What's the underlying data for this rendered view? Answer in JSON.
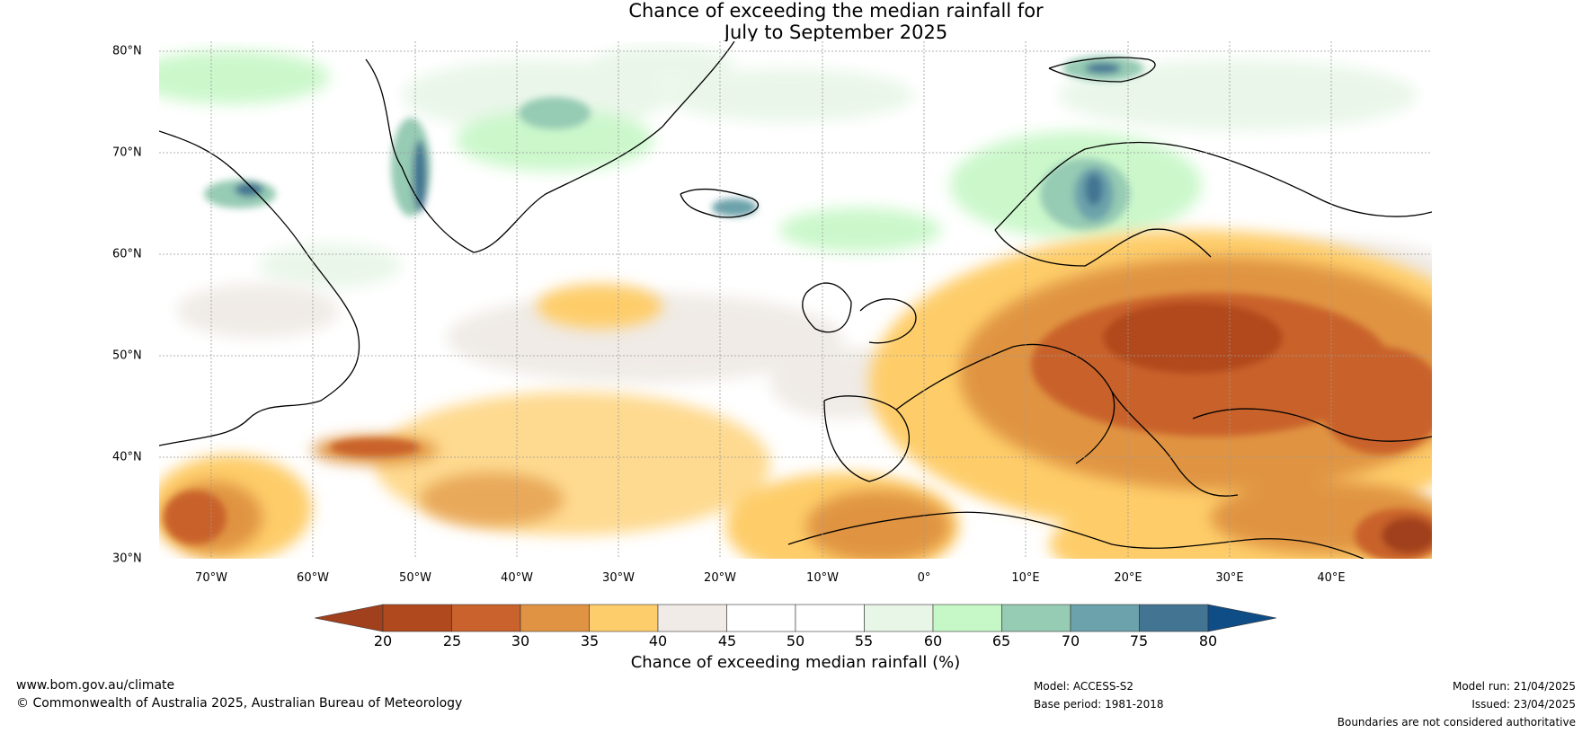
{
  "title": {
    "line1": "Chance of exceeding the median rainfall for",
    "line2": "July to September 2025"
  },
  "map": {
    "lat_labels": [
      "80°N",
      "70°N",
      "60°N",
      "50°N",
      "40°N",
      "30°N"
    ],
    "lon_labels": [
      "70°W",
      "60°W",
      "50°W",
      "40°W",
      "30°W",
      "20°W",
      "10°W",
      "0°",
      "10°E",
      "20°E",
      "30°E",
      "40°E"
    ],
    "lat_range": [
      30,
      80
    ],
    "lon_range": [
      -75,
      50
    ]
  },
  "colorbar": {
    "ticks": [
      "20",
      "25",
      "30",
      "35",
      "40",
      "45",
      "50",
      "55",
      "60",
      "65",
      "70",
      "75",
      "80"
    ],
    "colors": [
      "#a0401c",
      "#b1491f",
      "#c9622c",
      "#e09443",
      "#fecd6b",
      "#f0ebe6",
      "#ffffff",
      "#ffffff",
      "#e8f6e8",
      "#c6f7c6",
      "#96cbb4",
      "#6ca2ab",
      "#437593",
      "#0f4d87"
    ],
    "low_color": "#a0401c",
    "high_color": "#0f4d87",
    "label": "Chance of exceeding median rainfall (%)"
  },
  "footer": {
    "website": "www.bom.gov.au/climate",
    "copyright": "© Commonwealth of Australia 2025, Australian Bureau of Meteorology",
    "model": "Model: ACCESS-S2",
    "base_period": "Base period: 1981-2018",
    "model_run": "Model run: 21/04/2025",
    "issued": "Issued: 23/04/2025",
    "disclaimer": "Boundaries are not considered authoritative"
  }
}
